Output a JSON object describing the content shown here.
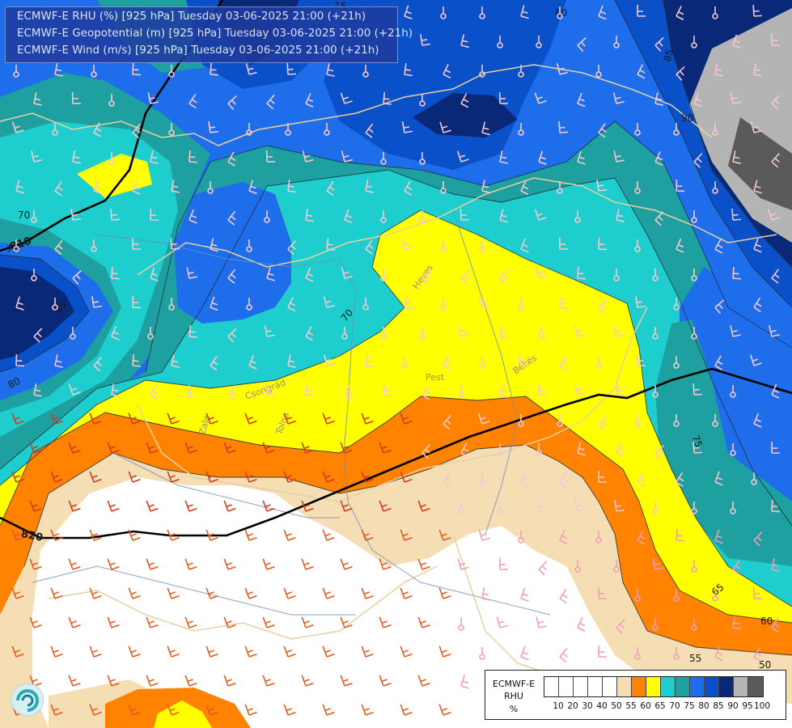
{
  "header": {
    "line1": "ECMWF-E RHU (%) [925 hPa] Tuesday 03-06-2025 21:00 (+21h)",
    "line2": "ECMWF-E Geopotential (m) [925 hPa] Tuesday 03-06-2025 21:00 (+21h)",
    "line3": "ECMWF-E Wind (m/s) [925 hPa] Tuesday 03-06-2025 21:00 (+21h)"
  },
  "contour_labels": {
    "rhu": [
      "80",
      "75",
      "85",
      "90",
      "70",
      "75",
      "85",
      "80",
      "70",
      "75",
      "65",
      "60",
      "55",
      "50"
    ],
    "geopotential": [
      "810",
      "820"
    ]
  },
  "place_labels": {
    "heves": "Heves",
    "pest": "Pest",
    "bekes": "Békés",
    "gyor": "Győr",
    "tolna": "Tolna",
    "zala": "Zala",
    "csongrad": "Csongrád"
  },
  "legend": {
    "title_line1": "ECMWF-E",
    "title_line2": "RHU",
    "title_line3": "%",
    "ticks": [
      "10",
      "20",
      "30",
      "40",
      "50",
      "55",
      "60",
      "65",
      "70",
      "75",
      "80",
      "85",
      "90",
      "95",
      "100"
    ],
    "colors": [
      "#ffffff",
      "#ffffff",
      "#ffffff",
      "#ffffff",
      "#ffffff",
      "#f5deb3",
      "#ff8200",
      "#ffff00",
      "#1ecdcd",
      "#1ea0a0",
      "#1e6eeb",
      "#0a50c8",
      "#0a2878",
      "#b4b4b4",
      "#5a5a5a"
    ]
  },
  "colors": {
    "rhu_50": "#ffffff",
    "rhu_55": "#f5deb3",
    "rhu_60": "#ff8200",
    "rhu_65": "#ffff00",
    "rhu_70": "#1ecdcd",
    "rhu_75": "#1ea0a0",
    "rhu_80": "#1e6eeb",
    "rhu_85": "#0a50c8",
    "rhu_90": "#0a2878",
    "rhu_95": "#b4b4b4",
    "rhu_100": "#5a5a5a",
    "border": "#e6d2a0",
    "river": "#6e8cbe",
    "geopotential_line": "#000000"
  },
  "logo": {
    "icon": "ecmwf-logo-icon"
  }
}
